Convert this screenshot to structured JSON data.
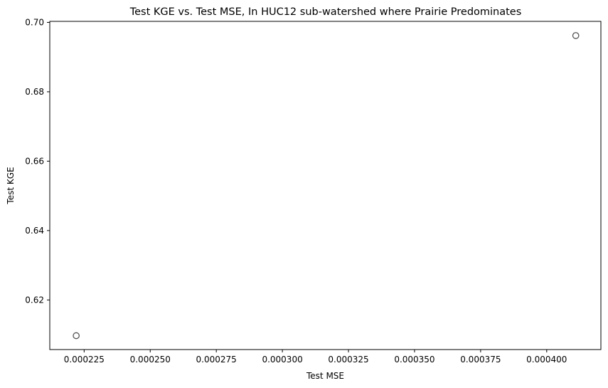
{
  "chart_data": {
    "type": "scatter",
    "title": "Test KGE vs. Test MSE, In HUC12 sub-watershed where Prairie Predominates",
    "xlabel": "Test MSE",
    "ylabel": "Test KGE",
    "xlim": [
      0.000212,
      0.0004205
    ],
    "ylim": [
      0.6057,
      0.7003
    ],
    "xticks": [
      0.000225,
      0.00025,
      0.000275,
      0.0003,
      0.000325,
      0.00035,
      0.000375,
      0.0004
    ],
    "xtick_labels": [
      "0.000225",
      "0.000250",
      "0.000275",
      "0.000300",
      "0.000325",
      "0.000350",
      "0.000375",
      "0.000400"
    ],
    "yticks": [
      0.62,
      0.64,
      0.66,
      0.68,
      0.7
    ],
    "ytick_labels": [
      "0.62",
      "0.64",
      "0.66",
      "0.68",
      "0.70"
    ],
    "grid": false,
    "marker": "hollow circle",
    "marker_color": "#555555",
    "points": [
      {
        "x": 0.000222,
        "y": 0.6097
      },
      {
        "x": 0.000411,
        "y": 0.6962
      }
    ]
  }
}
